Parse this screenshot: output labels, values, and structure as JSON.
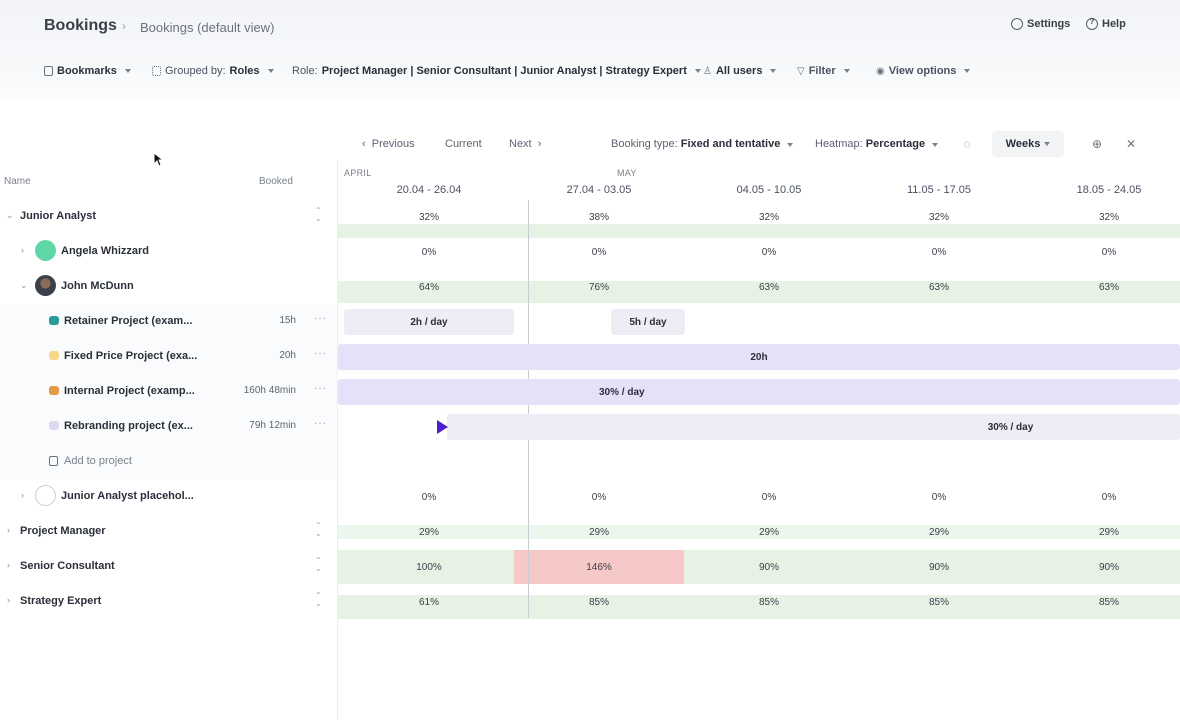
{
  "header": {
    "title": "Bookings",
    "breadcrumb": "Bookings (default view)",
    "settings_label": "Settings",
    "help_label": "Help"
  },
  "toolbar": {
    "bookmarks": "Bookmarks",
    "grouped_by_prefix": "Grouped by:",
    "grouped_by_value": "Roles",
    "role_prefix": "Role:",
    "role_value": "Project Manager | Senior Consultant | Junior Analyst | Strategy Expert",
    "users": "All users",
    "filter": "Filter",
    "view_options": "View options"
  },
  "nav": {
    "previous": "Previous",
    "current": "Current",
    "next": "Next",
    "booking_type_prefix": "Booking type:",
    "booking_type_value": "Fixed and tentative",
    "heatmap_prefix": "Heatmap:",
    "heatmap_value": "Percentage",
    "weeks": "Weeks"
  },
  "columns": {
    "name": "Name",
    "booked": "Booked",
    "months": [
      "APRIL",
      "MAY"
    ],
    "weeks": [
      "20.04 - 26.04",
      "27.04 - 03.05",
      "04.05 - 10.05",
      "11.05 - 17.05",
      "18.05 - 24.05"
    ]
  },
  "rows": {
    "junior_analyst": {
      "label": "Junior Analyst",
      "values": [
        "32%",
        "38%",
        "32%",
        "32%",
        "32%"
      ]
    },
    "angela": {
      "label": "Angela Whizzard",
      "values": [
        "0%",
        "0%",
        "0%",
        "0%",
        "0%"
      ]
    },
    "john": {
      "label": "John McDunn",
      "values": [
        "64%",
        "76%",
        "63%",
        "63%",
        "63%"
      ]
    },
    "retainer": {
      "label": "Retainer Project (exam...",
      "booked": "15h",
      "bar1": "2h / day",
      "bar2": "5h / day"
    },
    "fixed": {
      "label": "Fixed Price Project (exa...",
      "booked": "20h",
      "bar": "20h"
    },
    "internal": {
      "label": "Internal Project (examp...",
      "booked": "160h 48min",
      "bar": "30% / day"
    },
    "rebranding": {
      "label": "Rebranding project (ex...",
      "booked": "79h 12min",
      "bar": "30% / day"
    },
    "add_project": {
      "label": "Add to project"
    },
    "ja_placeholder": {
      "label": "Junior Analyst placehol...",
      "values": [
        "0%",
        "0%",
        "0%",
        "0%",
        "0%"
      ]
    },
    "project_manager": {
      "label": "Project Manager",
      "values": [
        "29%",
        "29%",
        "29%",
        "29%",
        "29%"
      ]
    },
    "senior_consultant": {
      "label": "Senior Consultant",
      "values": [
        "100%",
        "146%",
        "90%",
        "90%",
        "90%"
      ]
    },
    "strategy_expert": {
      "label": "Strategy Expert",
      "values": [
        "61%",
        "85%",
        "85%",
        "85%",
        "85%"
      ]
    }
  },
  "colors": {
    "heat_green": "#e6f2e4",
    "over_red": "#f6c8c8",
    "bar_purple": "#e6e0f8",
    "accent": "#4b1fcf"
  }
}
